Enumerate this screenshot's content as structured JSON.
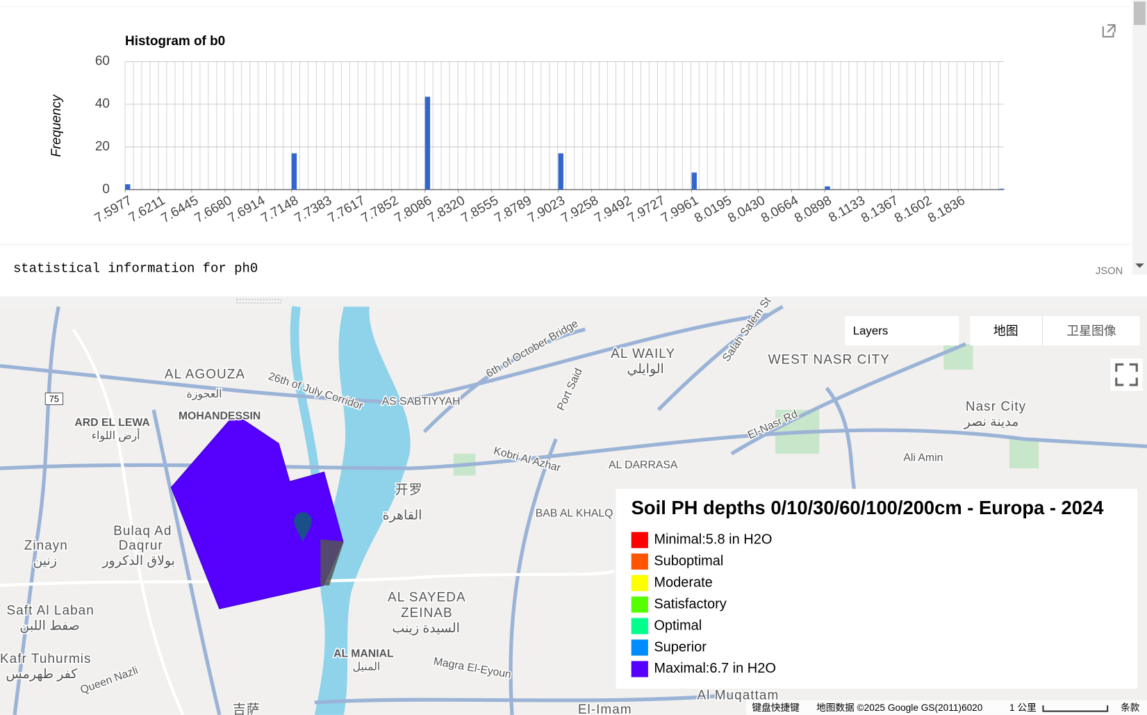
{
  "chart_data": {
    "type": "bar",
    "title": "Histogram of b0",
    "y_label": "Frequency",
    "x": [
      7.5977,
      7.7148,
      7.8086,
      7.9023,
      7.9961,
      8.0898,
      8.2124
    ],
    "values": [
      2.5,
      17,
      43.5,
      17,
      8,
      1.5,
      0.4
    ],
    "color": "#3366cc",
    "xlim": [
      7.5977,
      8.2155
    ],
    "ylim": [
      0,
      60
    ],
    "xticks": [
      7.5977,
      7.6211,
      7.6445,
      {
        "value": 7.668,
        "label": "7.6680"
      },
      7.6914,
      7.7148,
      7.7383,
      7.7617,
      7.7852,
      7.8086,
      {
        "value": 7.832,
        "label": "7.8320"
      },
      7.8555,
      7.8789,
      7.9023,
      7.9258,
      7.9492,
      7.9727,
      7.9961,
      8.0195,
      {
        "value": 8.043,
        "label": "8.0430"
      },
      8.0664,
      8.0898,
      8.1133,
      8.1367,
      8.1602,
      8.1836
    ],
    "yticks": [
      0,
      20,
      40,
      60
    ],
    "grid": true
  },
  "console": {
    "text": "statistical information for ph0",
    "json_label": "JSON"
  },
  "map": {
    "controls": {
      "layers": "Layers",
      "map": "地图",
      "satellite": "卫星图像"
    },
    "labels": [
      "AL AGOUZA",
      "العجوزة",
      "MOHANDESSIN",
      "ARD EL LEWA",
      "أرض اللواء",
      "Bulaq Ad",
      "Daqrur",
      "بولاق الدكرور",
      "Zinayn",
      "زنين",
      "Saft Al Laban",
      "صفط اللبن",
      "Kafr Tuhurmis",
      "كفر طهرمس",
      "开罗",
      "القاهرة",
      "AL SAYEDA",
      "ZEINAB",
      "السيدة زينب",
      "AL MANIAL",
      "المنيل",
      "AL WAILY",
      "الوايلي",
      "WEST NASR CITY",
      "Nasr City",
      "مدينة نصر",
      "AL DARRASA",
      "BAB AL KHALQ",
      "AS SABTIYYAH",
      "6th of October Bridge",
      "26th of July Corridor",
      "Kobri Al Azhar",
      "Port Said",
      "El-Nasr Rd",
      "Ali Amin",
      "Salah Salem St",
      "Magra El-Eyoun",
      "Queen Nazli",
      "吉萨",
      "Al Muqattam",
      "El-Imam",
      "75"
    ],
    "legend": {
      "title": "Soil PH depths 0/10/30/60/100/200cm - Europa - 2024",
      "items": [
        {
          "label": "Minimal:5.8 in H2O",
          "color": "#ff0000"
        },
        {
          "label": "Suboptimal",
          "color": "#ff5400"
        },
        {
          "label": "Moderate",
          "color": "#ffff00"
        },
        {
          "label": "Satisfactory",
          "color": "#55ff00"
        },
        {
          "label": "Optimal",
          "color": "#00ff8c"
        },
        {
          "label": "Superior",
          "color": "#008cff"
        },
        {
          "label": "Maximal:6.7 in H2O",
          "color": "#5500ff"
        }
      ]
    },
    "footer": {
      "shortcuts": "键盘快捷键",
      "data": "地图数据 ©2025 Google GS(2011)6020",
      "scale": "1 公里",
      "terms": "条款"
    }
  }
}
